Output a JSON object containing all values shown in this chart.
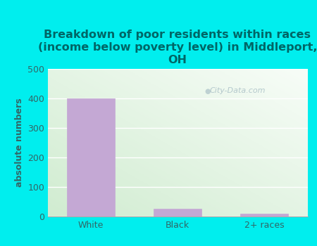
{
  "categories": [
    "White",
    "Black",
    "2+ races"
  ],
  "values": [
    399,
    27,
    10
  ],
  "bar_color": "#c4a8d4",
  "title": "Breakdown of poor residents within races\n(income below poverty level) in Middleport,\nOH",
  "ylabel": "absolute numbers",
  "ylim": [
    0,
    500
  ],
  "yticks": [
    0,
    100,
    200,
    300,
    400,
    500
  ],
  "background_color": "#00eeee",
  "title_color": "#006666",
  "axis_color": "#336666",
  "tick_color": "#336666",
  "watermark": "City-Data.com",
  "title_fontsize": 11.5,
  "label_fontsize": 9,
  "tick_fontsize": 9
}
